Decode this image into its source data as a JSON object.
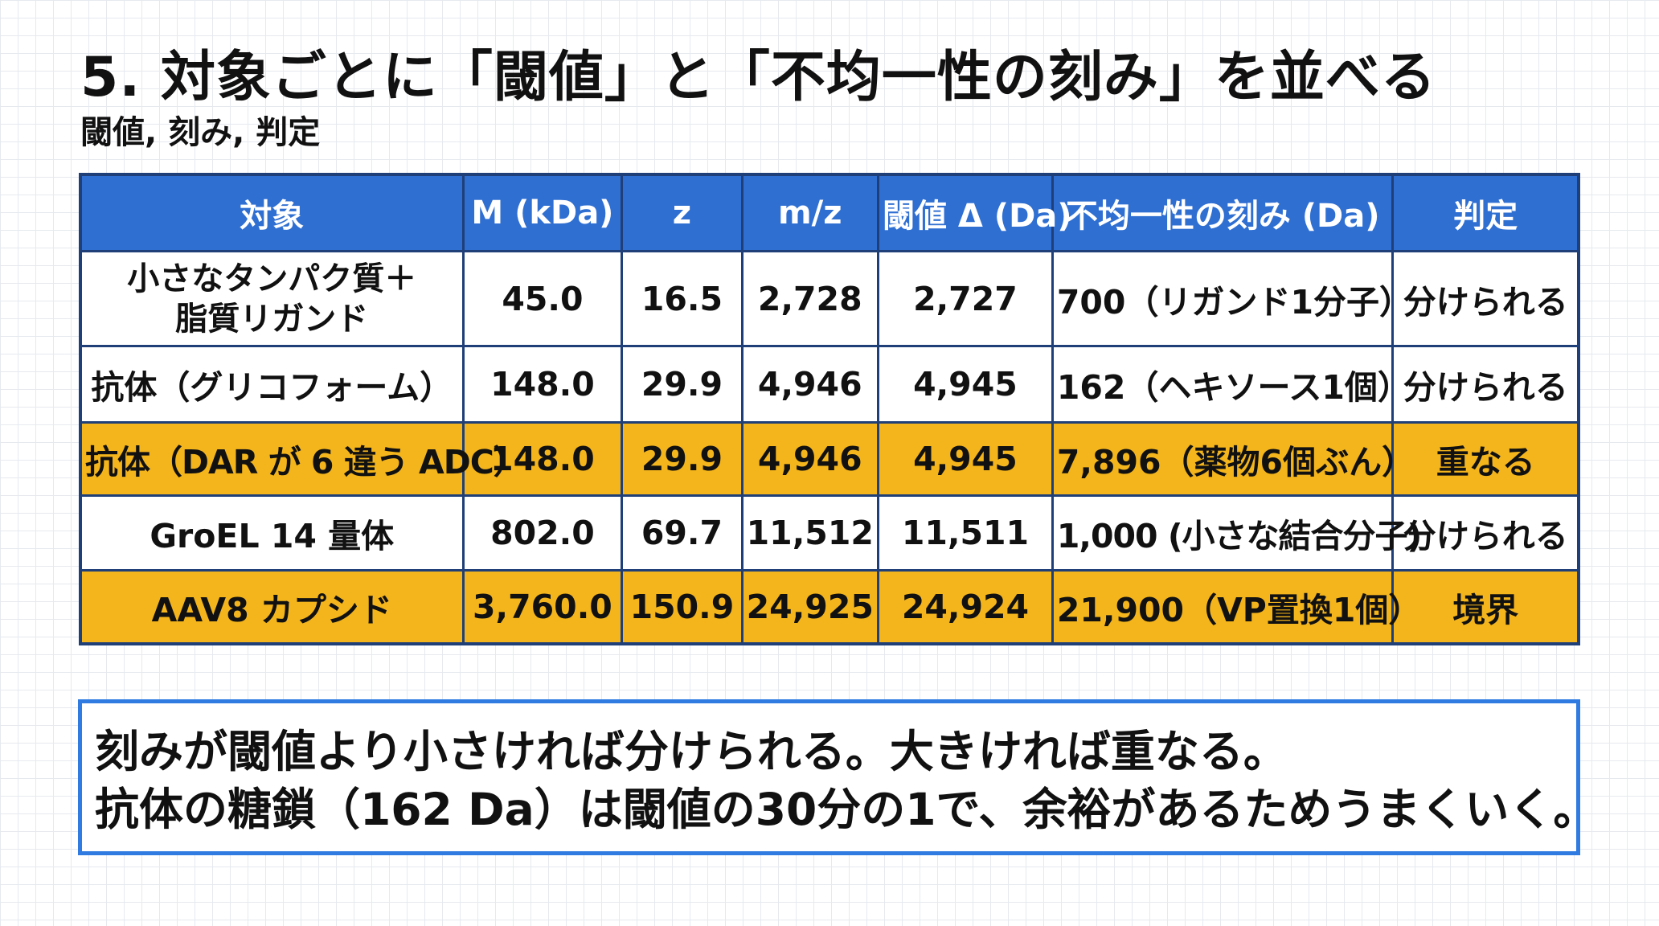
{
  "title": "5. 対象ごとに「閾値」と「不均一性の刻み」を並べる",
  "subtitle": "閾値, 刻み, 判定",
  "table": {
    "headers": [
      "対象",
      "M (kDa)",
      "z",
      "m/z",
      "閾値 Δ (Da)",
      "不均一性の刻み (Da)",
      "判定"
    ],
    "rows": [
      {
        "target_lines": [
          "小さなタンパク質＋",
          "脂質リガンド"
        ],
        "mass": "45.0",
        "z": "16.5",
        "mz": "2,728",
        "threshold": "2,727",
        "step": "700（リガンド1分子）",
        "verdict": "分けられる",
        "highlight": false
      },
      {
        "target": "抗体（グリコフォーム）",
        "mass": "148.0",
        "z": "29.9",
        "mz": "4,946",
        "threshold": "4,945",
        "step": "162（ヘキソース1個）",
        "verdict": "分けられる",
        "highlight": false
      },
      {
        "target": "抗体（DAR が 6 違う ADC）",
        "mass": "148.0",
        "z": "29.9",
        "mz": "4,946",
        "threshold": "4,945",
        "step": "7,896（薬物6個ぶん）",
        "verdict": "重なる",
        "highlight": true
      },
      {
        "target": "GroEL 14 量体",
        "mass": "802.0",
        "z": "69.7",
        "mz": "11,512",
        "threshold": "11,511",
        "step": "1,000 (小さな結合分子)",
        "verdict": "分けられる",
        "highlight": false
      },
      {
        "target": "AAV8 カプシド",
        "mass": "3,760.0",
        "z": "150.9",
        "mz": "24,925",
        "threshold": "24,924",
        "step": "21,900（VP置換1個）",
        "verdict": "境界",
        "highlight": true
      }
    ]
  },
  "note": {
    "line1": "刻みが閾値より小さければ分けられる。大きければ重なる。",
    "line2": "抗体の糖鎖（162 Da）は閾値の30分の1で、余裕があるためうまくいく。"
  },
  "colors": {
    "header_bg": "#2f6fd2",
    "highlight_row": "#f4b51c",
    "table_border": "#1f3f78",
    "note_border": "#2f7be2"
  }
}
